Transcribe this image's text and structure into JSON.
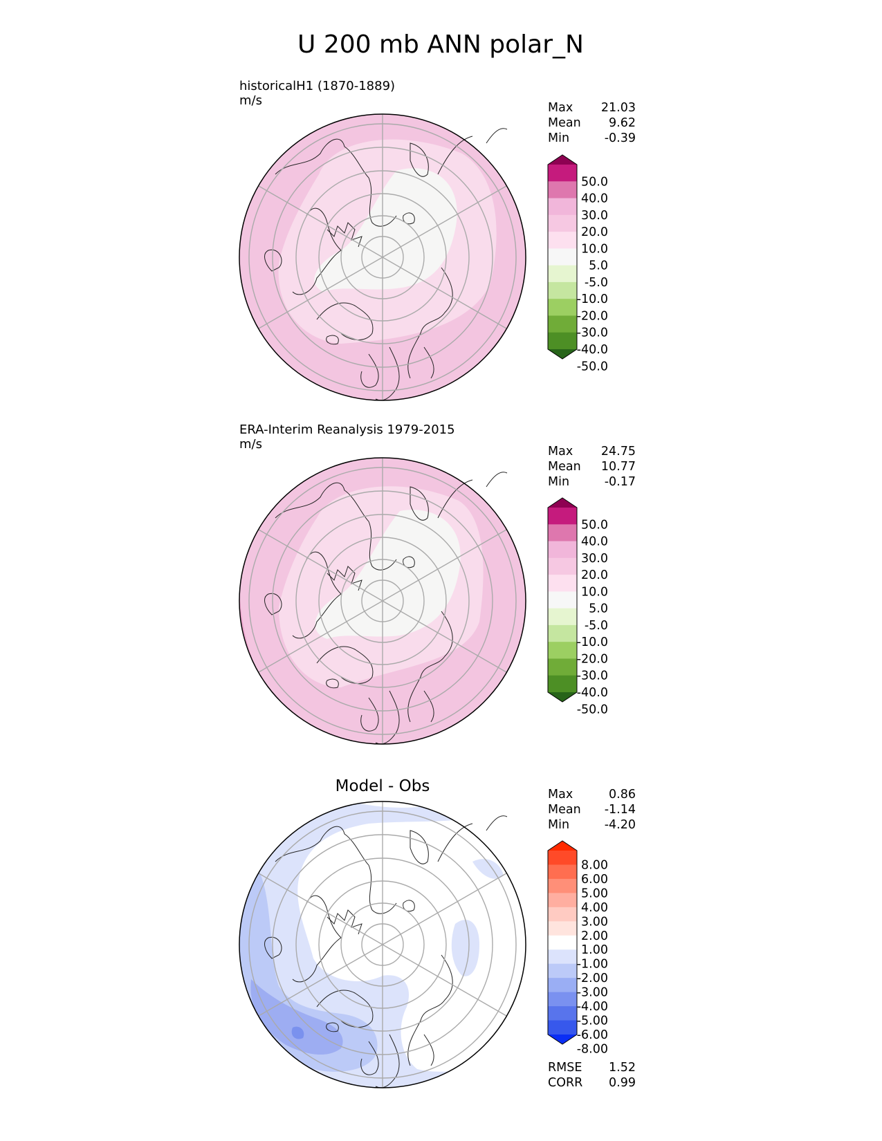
{
  "figure": {
    "title": "U 200 mb ANN polar_N"
  },
  "panels": [
    {
      "title": "historicalH1 (1870-1889)",
      "units": "m/s",
      "stats": [
        {
          "label": "Max",
          "value": "21.03"
        },
        {
          "label": "Mean",
          "value": "9.62"
        },
        {
          "label": "Min",
          "value": "-0.39"
        }
      ]
    },
    {
      "title": "ERA-Interim Reanalysis 1979-2015",
      "units": "m/s",
      "stats": [
        {
          "label": "Max",
          "value": "24.75"
        },
        {
          "label": "Mean",
          "value": "10.77"
        },
        {
          "label": "Min",
          "value": "-0.17"
        }
      ]
    },
    {
      "title": "Model - Obs",
      "units": "",
      "stats": [
        {
          "label": "Max",
          "value": "0.86"
        },
        {
          "label": "Mean",
          "value": "-1.14"
        },
        {
          "label": "Min",
          "value": "-4.20"
        }
      ],
      "extra_stats": [
        {
          "label": "RMSE",
          "value": "1.52"
        },
        {
          "label": "CORR",
          "value": "0.99"
        }
      ]
    }
  ],
  "colorbars": {
    "field": {
      "labels": [
        "50.0",
        "40.0",
        "30.0",
        "20.0",
        "10.0",
        "5.0",
        "-5.0",
        "-10.0",
        "-20.0",
        "-30.0",
        "-40.0",
        "-50.0"
      ],
      "colors": [
        "#8e0152",
        "#c51b7d",
        "#de77ae",
        "#f1b6da",
        "#f6c8e2",
        "#fde0ef",
        "#f7f7f7",
        "#e6f5d0",
        "#c5e6a0",
        "#9ccf62",
        "#70ac38",
        "#4d8f25",
        "#276419"
      ]
    },
    "diff": {
      "labels": [
        "8.00",
        "6.00",
        "5.00",
        "4.00",
        "3.00",
        "2.00",
        "1.00",
        "-1.00",
        "-2.00",
        "-3.00",
        "-4.00",
        "-5.00",
        "-6.00",
        "-8.00"
      ],
      "colors": [
        "#ff2a00",
        "#ff4a28",
        "#ff6e50",
        "#ff8f78",
        "#ffaea0",
        "#ffcbc2",
        "#ffe4de",
        "#ffffff",
        "#dce3fc",
        "#bccaf8",
        "#9aaef4",
        "#7a91f0",
        "#5874ec",
        "#3758ec",
        "#0a2ef5"
      ]
    }
  },
  "chart_data": [
    {
      "type": "heatmap",
      "projection": "north polar stereographic",
      "title": "historicalH1 (1870-1889)",
      "units": "m/s",
      "levels": [
        -50,
        -40,
        -30,
        -20,
        -10,
        -5,
        5,
        10,
        20,
        30,
        40,
        50
      ],
      "stats": {
        "max": 21.03,
        "mean": 9.62,
        "min": -0.39
      },
      "field_pattern": [
        {
          "range": "-5 to 5",
          "region": "pole and eastern Arctic"
        },
        {
          "range": "5 to 10",
          "region": "high latitudes ring"
        },
        {
          "range": "10 to 20",
          "region": "mid latitudes"
        },
        {
          "range": "20 to 30",
          "region": "small patches near outer edge"
        }
      ]
    },
    {
      "type": "heatmap",
      "projection": "north polar stereographic",
      "title": "ERA-Interim Reanalysis 1979-2015",
      "units": "m/s",
      "levels": [
        -50,
        -40,
        -30,
        -20,
        -10,
        -5,
        5,
        10,
        20,
        30,
        40,
        50
      ],
      "stats": {
        "max": 24.75,
        "mean": 10.77,
        "min": -0.17
      },
      "field_pattern": [
        {
          "range": "-5 to 5",
          "region": "pole and eastern Arctic"
        },
        {
          "range": "5 to 10",
          "region": "high latitudes ring"
        },
        {
          "range": "10 to 20",
          "region": "mid latitudes"
        },
        {
          "range": "20 to 30",
          "region": "band near outer edge, lower-left sector"
        }
      ]
    },
    {
      "type": "heatmap",
      "projection": "north polar stereographic",
      "title": "Model - Obs",
      "levels": [
        -8,
        -6,
        -5,
        -4,
        -3,
        -2,
        -1,
        1,
        2,
        3,
        4,
        5,
        6,
        8
      ],
      "stats": {
        "max": 0.86,
        "mean": -1.14,
        "min": -4.2,
        "rmse": 1.52,
        "corr": 0.99
      },
      "field_pattern": [
        {
          "range": "-1 to 1",
          "region": "pole, center and right"
        },
        {
          "range": "-2 to -1",
          "region": "broad band across left and bottom"
        },
        {
          "range": "-3 to -2",
          "region": "left edge"
        },
        {
          "range": "-4 to -3",
          "region": "lower-left blob"
        }
      ]
    }
  ]
}
